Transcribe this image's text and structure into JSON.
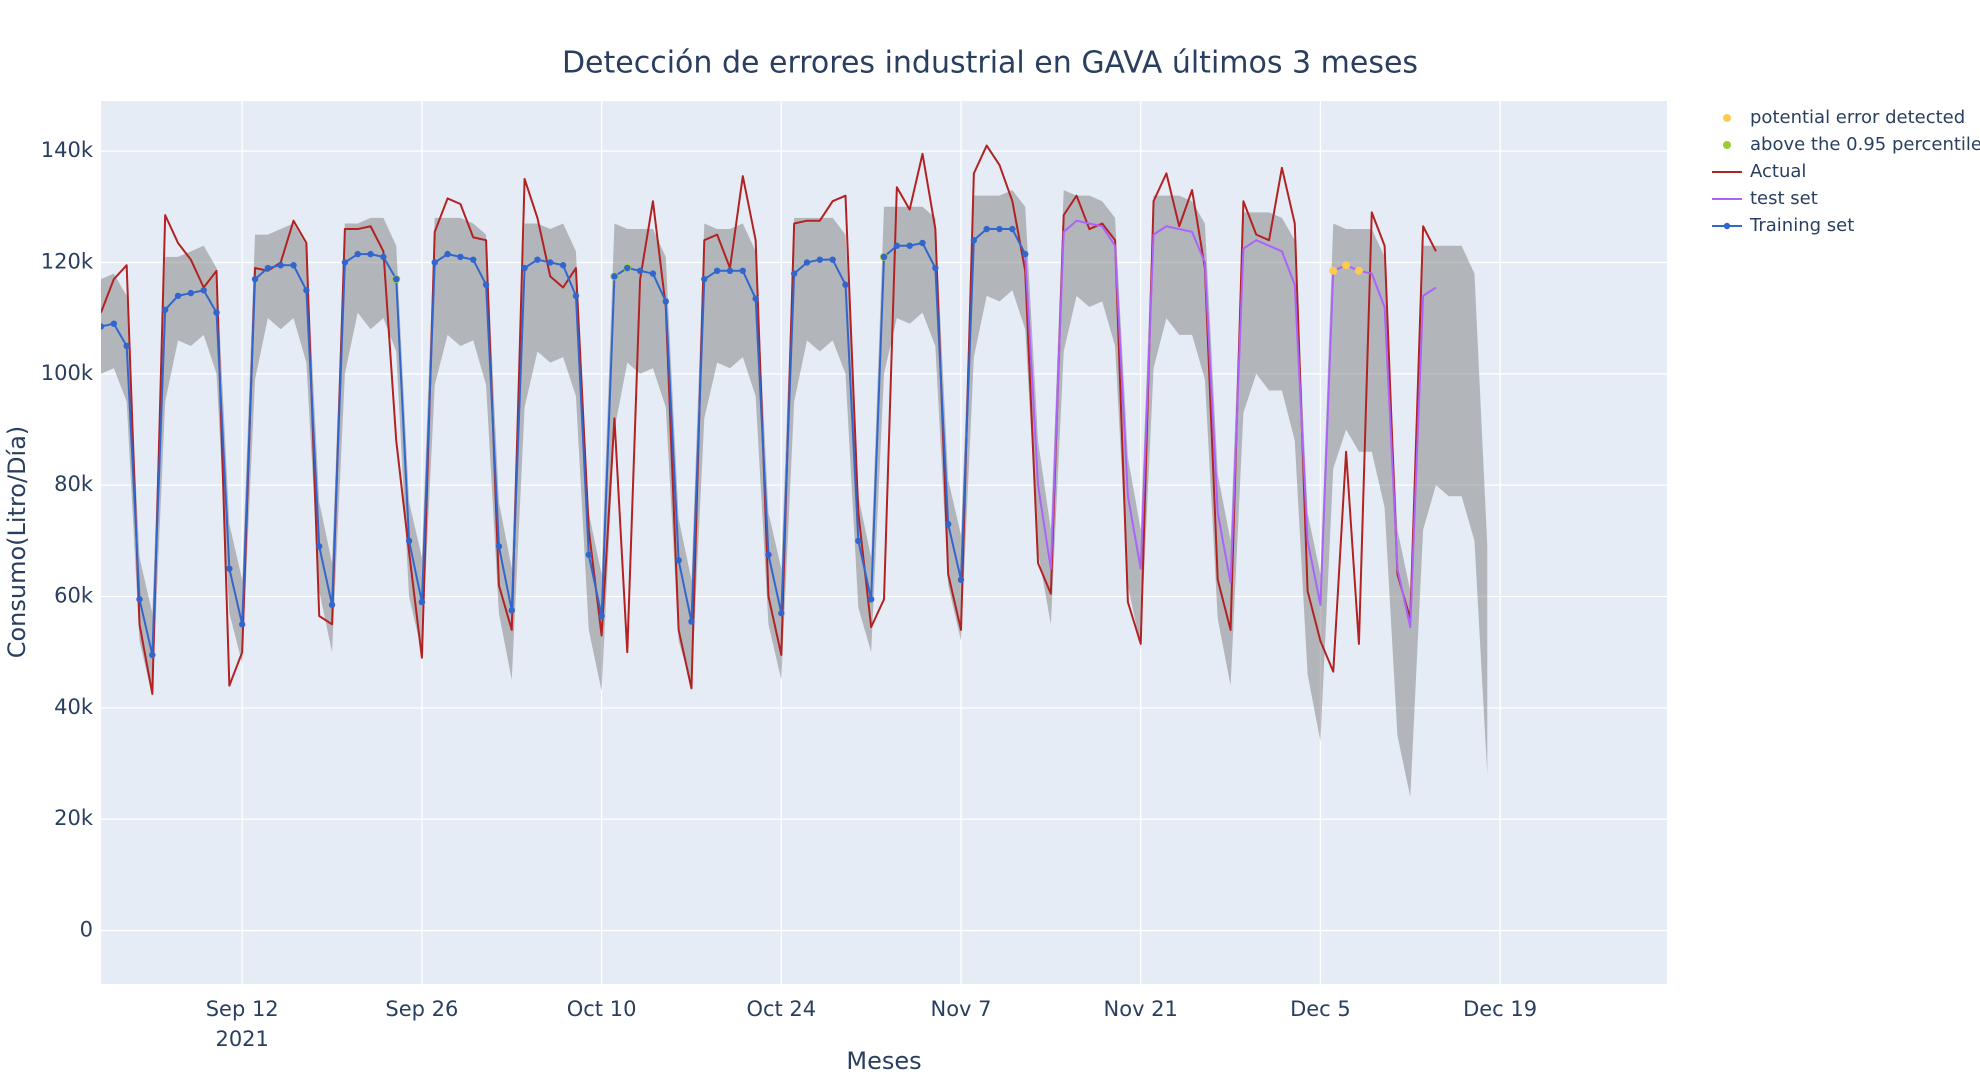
{
  "chart_data": {
    "type": "line",
    "title": "Detección de errores industrial en GAVA últimos 3 meses",
    "x_label": "Meses",
    "y_label": "Consumo(Litro/Día)",
    "xlim": [
      "2021-09-01",
      "2022-01-01"
    ],
    "xticks": [
      {
        "value": "2021-09-12",
        "label": "Sep 12\n2021"
      },
      {
        "value": "2021-09-26",
        "label": "Sep 26"
      },
      {
        "value": "2021-10-10",
        "label": "Oct 10"
      },
      {
        "value": "2021-10-24",
        "label": "Oct 24"
      },
      {
        "value": "2021-11-07",
        "label": "Nov 7"
      },
      {
        "value": "2021-11-21",
        "label": "Nov 21"
      },
      {
        "value": "2021-12-05",
        "label": "Dec 5"
      },
      {
        "value": "2021-12-19",
        "label": "Dec 19"
      }
    ],
    "ylim": [
      -9600,
      149000
    ],
    "yticks": [
      0,
      {
        "value": 20000,
        "label": "20k"
      },
      {
        "value": 40000,
        "label": "40k"
      },
      {
        "value": 60000,
        "label": "60k"
      },
      {
        "value": 80000,
        "label": "80k"
      },
      {
        "value": 100000,
        "label": "100k"
      },
      {
        "value": 120000,
        "label": "120k"
      },
      {
        "value": 140000,
        "label": "140k"
      }
    ],
    "grid": true,
    "legend": "outside-right",
    "x": [
      "2021-09-01",
      "2021-09-02",
      "2021-09-03",
      "2021-09-04",
      "2021-09-05",
      "2021-09-06",
      "2021-09-07",
      "2021-09-08",
      "2021-09-09",
      "2021-09-10",
      "2021-09-11",
      "2021-09-12",
      "2021-09-13",
      "2021-09-14",
      "2021-09-15",
      "2021-09-16",
      "2021-09-17",
      "2021-09-18",
      "2021-09-19",
      "2021-09-20",
      "2021-09-21",
      "2021-09-22",
      "2021-09-23",
      "2021-09-24",
      "2021-09-25",
      "2021-09-26",
      "2021-09-27",
      "2021-09-28",
      "2021-09-29",
      "2021-09-30",
      "2021-10-01",
      "2021-10-02",
      "2021-10-03",
      "2021-10-04",
      "2021-10-05",
      "2021-10-06",
      "2021-10-07",
      "2021-10-08",
      "2021-10-09",
      "2021-10-10",
      "2021-10-11",
      "2021-10-12",
      "2021-10-13",
      "2021-10-14",
      "2021-10-15",
      "2021-10-16",
      "2021-10-17",
      "2021-10-18",
      "2021-10-19",
      "2021-10-20",
      "2021-10-21",
      "2021-10-22",
      "2021-10-23",
      "2021-10-24",
      "2021-10-25",
      "2021-10-26",
      "2021-10-27",
      "2021-10-28",
      "2021-10-29",
      "2021-10-30",
      "2021-10-31",
      "2021-11-01",
      "2021-11-02",
      "2021-11-03",
      "2021-11-04",
      "2021-11-05",
      "2021-11-06",
      "2021-11-07",
      "2021-11-08",
      "2021-11-09",
      "2021-11-10",
      "2021-11-11",
      "2021-11-12",
      "2021-11-13",
      "2021-11-14",
      "2021-11-15",
      "2021-11-16",
      "2021-11-17",
      "2021-11-18",
      "2021-11-19",
      "2021-11-20",
      "2021-11-21",
      "2021-11-22",
      "2021-11-23",
      "2021-11-24",
      "2021-11-25",
      "2021-11-26",
      "2021-11-27",
      "2021-11-28",
      "2021-11-29",
      "2021-11-30",
      "2021-12-01",
      "2021-12-02",
      "2021-12-03",
      "2021-12-04",
      "2021-12-05",
      "2021-12-06",
      "2021-12-07",
      "2021-12-08",
      "2021-12-09",
      "2021-12-10",
      "2021-12-11",
      "2021-12-12",
      "2021-12-13",
      "2021-12-14",
      "2021-12-15",
      "2021-12-16",
      "2021-12-17",
      "2021-12-18"
    ],
    "band": {
      "color": "rgba(128,128,128,0.5)",
      "upper": [
        117000,
        118000,
        114000,
        67000,
        57000,
        121000,
        121000,
        122000,
        123000,
        119000,
        73000,
        63000,
        125000,
        125000,
        126000,
        127000,
        123000,
        77000,
        66000,
        127000,
        127000,
        128000,
        128000,
        123000,
        77000,
        67000,
        128000,
        128000,
        128000,
        127000,
        125000,
        77000,
        65000,
        127000,
        127000,
        126000,
        127000,
        122000,
        75000,
        64000,
        127000,
        126000,
        126000,
        126000,
        121000,
        74000,
        63000,
        127000,
        126000,
        126000,
        127000,
        122000,
        75000,
        65000,
        128000,
        128000,
        128000,
        128000,
        125000,
        78000,
        67000,
        130000,
        130000,
        130000,
        130000,
        128000,
        81000,
        71000,
        132000,
        132000,
        132000,
        133000,
        130000,
        88000,
        72000,
        133000,
        132000,
        132000,
        131000,
        128000,
        85000,
        72000,
        132000,
        132000,
        132000,
        131000,
        127000,
        82000,
        70000,
        129000,
        129000,
        129000,
        128000,
        124000,
        75000,
        64000,
        127000,
        126000,
        126000,
        126000,
        121000,
        72000,
        61000,
        123000,
        123000,
        123000,
        123000,
        118000,
        69000
      ],
      "lower": [
        100000,
        101000,
        95000,
        52000,
        42000,
        95000,
        106000,
        105000,
        107000,
        100000,
        57000,
        48000,
        99000,
        110000,
        108000,
        110000,
        102000,
        61000,
        50000,
        100000,
        111000,
        108000,
        110000,
        104000,
        60000,
        50000,
        98000,
        107000,
        105000,
        106000,
        98000,
        57000,
        45000,
        94000,
        104000,
        102000,
        103000,
        96000,
        54000,
        43000,
        90000,
        102000,
        100000,
        101000,
        94000,
        52000,
        44000,
        92000,
        102000,
        101000,
        103000,
        96000,
        55000,
        45000,
        95000,
        106000,
        104000,
        106000,
        100000,
        58000,
        50000,
        100000,
        110000,
        109000,
        111000,
        105000,
        62000,
        52000,
        103000,
        114000,
        113000,
        115000,
        108000,
        68000,
        55000,
        104000,
        114000,
        112000,
        113000,
        105000,
        62000,
        51000,
        101000,
        110000,
        107000,
        107000,
        99000,
        56000,
        44000,
        93000,
        100000,
        97000,
        97000,
        88000,
        46000,
        34000,
        83000,
        90000,
        86000,
        86000,
        76000,
        35000,
        24000,
        72000,
        80000,
        78000,
        78000,
        70000,
        28000
      ]
    },
    "series": [
      {
        "name": "potential error detected",
        "mode": "markers",
        "color": "#FECB52",
        "x": [
          "2021-12-06",
          "2021-12-07",
          "2021-12-08"
        ],
        "values": [
          118500,
          119500,
          118500
        ]
      },
      {
        "name": "above the 0.95 percentile",
        "mode": "markers",
        "color": "#9ACD32",
        "x": [
          "2021-09-24",
          "2021-10-11",
          "2021-10-12",
          "2021-11-01"
        ],
        "values": [
          117000,
          117500,
          119000,
          121000
        ]
      },
      {
        "name": "Actual",
        "mode": "lines",
        "color": "#B22222",
        "values": [
          111000,
          117000,
          119500,
          55000,
          42500,
          128500,
          123500,
          120500,
          115500,
          118500,
          44000,
          50000,
          119000,
          118500,
          120000,
          127500,
          123500,
          56500,
          55000,
          126000,
          126000,
          126500,
          122000,
          88000,
          68000,
          49000,
          125500,
          131500,
          130500,
          124500,
          124000,
          62000,
          54000,
          135000,
          128000,
          117500,
          115500,
          119000,
          72000,
          53000,
          92000,
          50000,
          117000,
          131000,
          112000,
          54000,
          43500,
          124000,
          125000,
          119000,
          135500,
          124000,
          60000,
          49500,
          127000,
          127500,
          127500,
          131000,
          132000,
          75000,
          54500,
          59500,
          133500,
          129500,
          139500,
          126000,
          64000,
          54000,
          136000,
          141000,
          137500,
          131000,
          118500,
          66000,
          60500,
          128500,
          132000,
          126000,
          127000,
          124000,
          59000,
          51500,
          131000,
          136000,
          126500,
          133000,
          119000,
          63000,
          54000,
          131000,
          125000,
          124000,
          137000,
          127000,
          61000,
          52000,
          46500,
          86000,
          51500,
          129000,
          123000,
          64000,
          56000,
          126500,
          122000,
          null,
          null,
          null,
          null
        ]
      },
      {
        "name": "test set",
        "mode": "lines",
        "color": "#AB63FA",
        "values": [
          null,
          null,
          null,
          null,
          null,
          null,
          null,
          null,
          null,
          null,
          null,
          null,
          null,
          null,
          null,
          null,
          null,
          null,
          null,
          null,
          null,
          null,
          null,
          null,
          null,
          null,
          null,
          null,
          null,
          null,
          null,
          null,
          null,
          null,
          null,
          null,
          null,
          null,
          null,
          null,
          null,
          null,
          null,
          null,
          null,
          null,
          null,
          null,
          null,
          null,
          null,
          null,
          null,
          null,
          null,
          null,
          null,
          null,
          null,
          null,
          null,
          null,
          null,
          null,
          null,
          null,
          null,
          null,
          null,
          null,
          null,
          null,
          121500,
          80000,
          65000,
          125500,
          127500,
          127000,
          126500,
          123000,
          78000,
          65000,
          125000,
          126500,
          126000,
          125500,
          120000,
          75000,
          62500,
          122500,
          124000,
          123000,
          122000,
          116000,
          70000,
          58500,
          118500,
          119500,
          118500,
          118000,
          112000,
          65000,
          54500,
          114000,
          115500,
          null,
          null,
          null,
          null
        ]
      },
      {
        "name": "Training set",
        "mode": "lines+markers",
        "color": "#3366CC",
        "values": [
          108500,
          109000,
          105000,
          59500,
          49500,
          111500,
          114000,
          114500,
          115000,
          111000,
          65000,
          55000,
          117000,
          119000,
          119500,
          119500,
          115000,
          69000,
          58500,
          120000,
          121500,
          121500,
          121000,
          117000,
          70000,
          59000,
          120000,
          121500,
          121000,
          120500,
          116000,
          69000,
          57500,
          119000,
          120500,
          120000,
          119500,
          114000,
          67500,
          56500,
          117500,
          119000,
          118500,
          118000,
          113000,
          66500,
          55500,
          117000,
          118500,
          118500,
          118500,
          113500,
          67500,
          57000,
          118000,
          120000,
          120500,
          120500,
          116000,
          70000,
          59500,
          121000,
          123000,
          123000,
          123500,
          119000,
          73000,
          63000,
          124000,
          126000,
          126000,
          126000,
          121500,
          null,
          null,
          null,
          null,
          null,
          null,
          null,
          null,
          null,
          null,
          null,
          null,
          null,
          null,
          null,
          null,
          null,
          null,
          null,
          null,
          null,
          null,
          null,
          null,
          null,
          null,
          null,
          null,
          null,
          null,
          null,
          null,
          null,
          null,
          null,
          null
        ]
      }
    ]
  }
}
